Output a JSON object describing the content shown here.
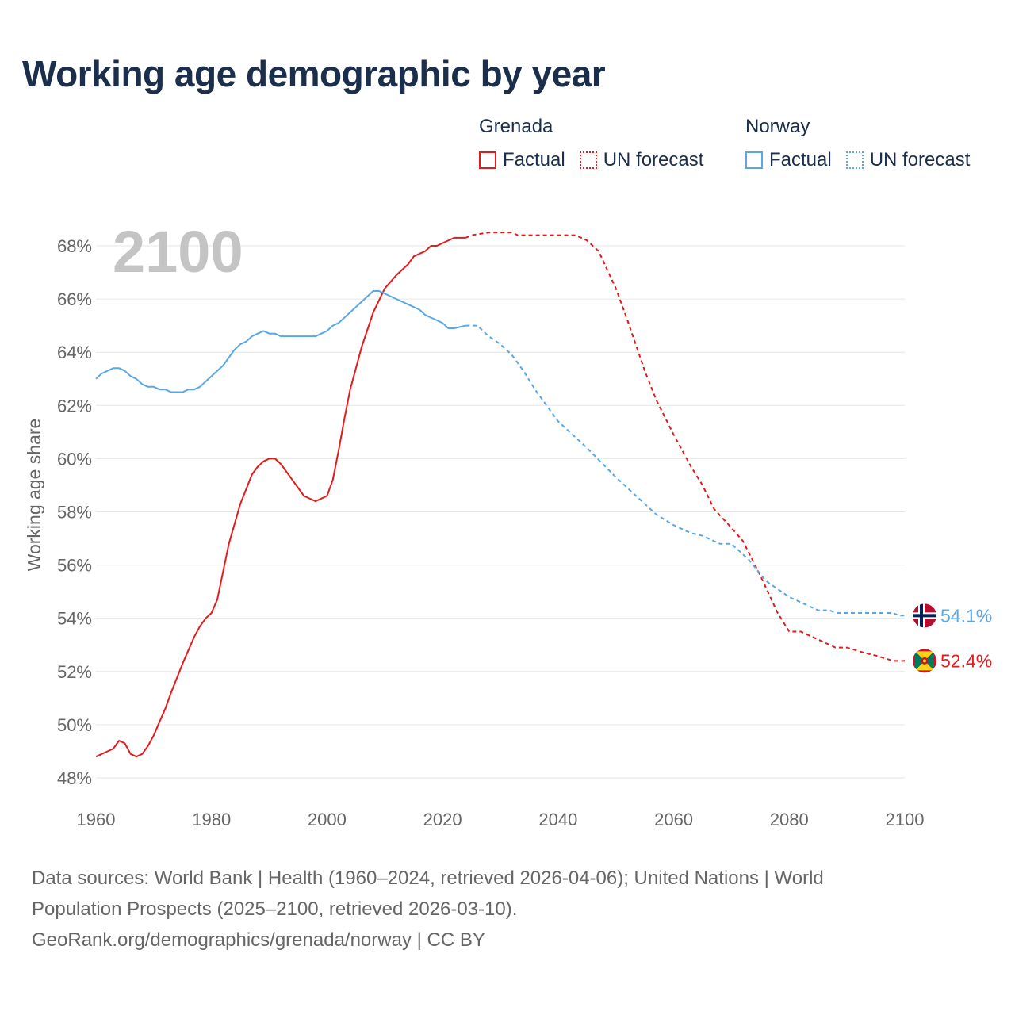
{
  "title": "Working age demographic by year",
  "legend": {
    "groups": [
      {
        "country": "Grenada",
        "factual_label": "Factual",
        "forecast_label": "UN forecast",
        "color": "#e31b1b"
      },
      {
        "country": "Norway",
        "factual_label": "Factual",
        "forecast_label": "UN forecast",
        "color": "#5aa7e6"
      }
    ]
  },
  "footer": {
    "line1": "Data sources: World Bank | Health (1960–2024, retrieved 2026-04-06); United Nations | World",
    "line2": "Population Prospects (2025–2100, retrieved 2026-03-10).",
    "line3": "GeoRank.org/demographics/grenada/norway | CC BY"
  },
  "chart_data": {
    "type": "line",
    "year_label": "2100",
    "ylabel": "Working age share",
    "xlim": [
      1960,
      2100
    ],
    "ylim": [
      47.5,
      69.0
    ],
    "xticks": [
      1960,
      1980,
      2000,
      2020,
      2040,
      2060,
      2080,
      2100
    ],
    "yticks": [
      48,
      50,
      52,
      54,
      56,
      58,
      60,
      62,
      64,
      66,
      68
    ],
    "ytick_labels": [
      "48%",
      "50%",
      "52%",
      "54%",
      "56%",
      "58%",
      "60%",
      "62%",
      "64%",
      "66%",
      "68%"
    ],
    "series": [
      {
        "name": "Grenada",
        "color": "#e31b1b",
        "end_label": "52.4%",
        "flag": "grenada",
        "factual": {
          "x": [
            1960,
            1963,
            1964,
            1965,
            1966,
            1967,
            1968,
            1969,
            1970,
            1971,
            1972,
            1973,
            1975,
            1977,
            1978,
            1979,
            1980,
            1981,
            1983,
            1985,
            1987,
            1988,
            1989,
            1990,
            1991,
            1992,
            1994,
            1996,
            1998,
            2000,
            2001,
            2002,
            2003,
            2004,
            2006,
            2008,
            2010,
            2012,
            2014,
            2015,
            2017,
            2018,
            2019,
            2020,
            2022,
            2024
          ],
          "y": [
            48.8,
            49.1,
            49.4,
            49.3,
            48.9,
            48.8,
            48.9,
            49.2,
            49.6,
            50.1,
            50.6,
            51.2,
            52.3,
            53.3,
            53.7,
            54.0,
            54.2,
            54.7,
            56.8,
            58.3,
            59.4,
            59.7,
            59.9,
            60.0,
            60.0,
            59.8,
            59.2,
            58.6,
            58.4,
            58.6,
            59.2,
            60.3,
            61.5,
            62.6,
            64.2,
            65.5,
            66.4,
            66.9,
            67.3,
            67.6,
            67.8,
            68.0,
            68.0,
            68.1,
            68.3,
            68.3
          ]
        },
        "forecast": {
          "x": [
            2024,
            2025,
            2028,
            2032,
            2033,
            2035,
            2040,
            2043,
            2045,
            2047,
            2050,
            2052,
            2055,
            2057,
            2060,
            2063,
            2065,
            2067,
            2070,
            2072,
            2075,
            2078,
            2080,
            2082,
            2085,
            2088,
            2090,
            2093,
            2095,
            2098,
            2100
          ],
          "y": [
            68.3,
            68.4,
            68.5,
            68.5,
            68.4,
            68.4,
            68.4,
            68.4,
            68.2,
            67.8,
            66.4,
            65.2,
            63.3,
            62.2,
            60.9,
            59.7,
            59.0,
            58.1,
            57.4,
            56.9,
            55.6,
            54.2,
            53.5,
            53.5,
            53.2,
            52.9,
            52.9,
            52.7,
            52.6,
            52.4,
            52.4
          ]
        }
      },
      {
        "name": "Norway",
        "color": "#5aa7e6",
        "end_label": "54.1%",
        "flag": "norway",
        "factual": {
          "x": [
            1960,
            1961,
            1962,
            1963,
            1964,
            1965,
            1966,
            1967,
            1968,
            1969,
            1970,
            1971,
            1972,
            1973,
            1974,
            1975,
            1976,
            1977,
            1978,
            1980,
            1982,
            1984,
            1985,
            1986,
            1987,
            1988,
            1989,
            1990,
            1991,
            1992,
            1994,
            1996,
            1998,
            1999,
            2000,
            2001,
            2002,
            2004,
            2006,
            2008,
            2009,
            2010,
            2012,
            2014,
            2016,
            2017,
            2018,
            2019,
            2020,
            2021,
            2022,
            2024
          ],
          "y": [
            63.0,
            63.2,
            63.3,
            63.4,
            63.4,
            63.3,
            63.1,
            63.0,
            62.8,
            62.7,
            62.7,
            62.6,
            62.6,
            62.5,
            62.5,
            62.5,
            62.6,
            62.6,
            62.7,
            63.1,
            63.5,
            64.1,
            64.3,
            64.4,
            64.6,
            64.7,
            64.8,
            64.7,
            64.7,
            64.6,
            64.6,
            64.6,
            64.6,
            64.7,
            64.8,
            65.0,
            65.1,
            65.5,
            65.9,
            66.3,
            66.3,
            66.2,
            66.0,
            65.8,
            65.6,
            65.4,
            65.3,
            65.2,
            65.1,
            64.9,
            64.9,
            65.0
          ]
        },
        "forecast": {
          "x": [
            2024,
            2026,
            2028,
            2030,
            2032,
            2034,
            2036,
            2038,
            2040,
            2045,
            2050,
            2055,
            2057,
            2060,
            2063,
            2065,
            2068,
            2070,
            2073,
            2076,
            2078,
            2080,
            2082,
            2085,
            2087,
            2088,
            2090,
            2095,
            2098,
            2099,
            2100
          ],
          "y": [
            65.0,
            65.0,
            64.6,
            64.3,
            63.9,
            63.3,
            62.6,
            62.0,
            61.4,
            60.4,
            59.3,
            58.3,
            57.9,
            57.5,
            57.2,
            57.1,
            56.8,
            56.8,
            56.2,
            55.4,
            55.1,
            54.8,
            54.6,
            54.3,
            54.3,
            54.2,
            54.2,
            54.2,
            54.2,
            54.1,
            54.1
          ]
        }
      }
    ]
  }
}
